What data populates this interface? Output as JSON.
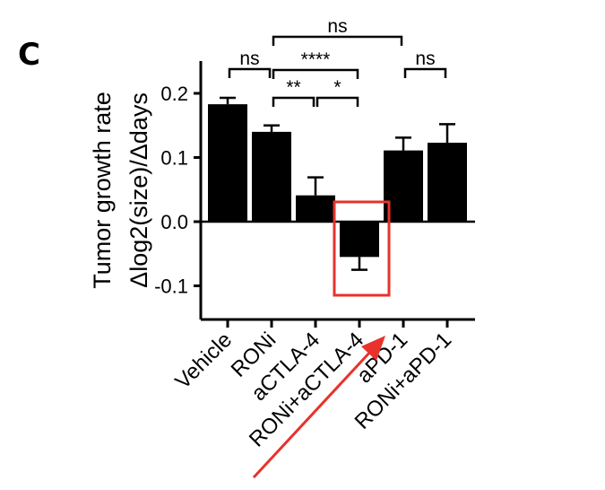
{
  "panel_label": "C",
  "chart_data": {
    "type": "bar",
    "ylabel_line1": "Tumor growth rate",
    "ylabel_line2": "Δlog2(size)/Δdays",
    "ylim": [
      -0.15,
      0.25
    ],
    "yticks": [
      -0.1,
      0.0,
      0.1,
      0.2
    ],
    "ytick_labels": [
      "-0.1",
      "0.0",
      "0.1",
      "0.2"
    ],
    "categories": [
      "Vehicle",
      "RONi",
      "aCTLA-4",
      "RONi+aCTLA-4",
      "aPD-1",
      "RONi+aPD-1"
    ],
    "values": [
      0.183,
      0.14,
      0.041,
      -0.055,
      0.111,
      0.123
    ],
    "errors": [
      0.01,
      0.01,
      0.028,
      0.02,
      0.02,
      0.029
    ],
    "significance": [
      {
        "from": 1,
        "to": 0,
        "label": "ns"
      },
      {
        "from": 1,
        "to": 4,
        "label": "ns"
      },
      {
        "from": 1,
        "to": 3,
        "label": "****"
      },
      {
        "from": 1,
        "to": 2,
        "label": "**"
      },
      {
        "from": 2,
        "to": 3,
        "label": "*"
      },
      {
        "from": 4,
        "to": 5,
        "label": "ns"
      }
    ],
    "highlight_color": "#e8322c",
    "bar_color": "#000000"
  }
}
